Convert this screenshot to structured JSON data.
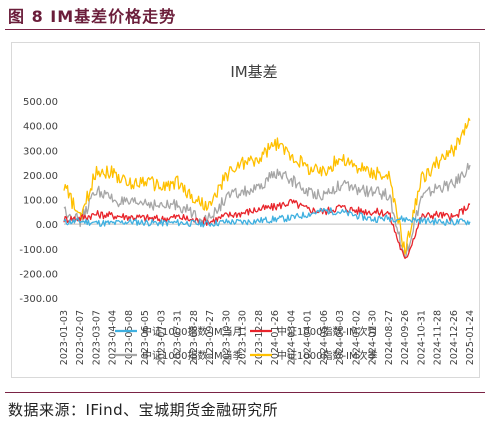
{
  "figure_title": "图 8 IM基差价格走势",
  "source": "数据来源：IFind、宝城期货金融研究所",
  "colors": {
    "im_current_month": "#3fb0e0",
    "im_next_month": "#e8242b",
    "im_current_quarter": "#a6a6a6",
    "im_next_quarter": "#ffc000",
    "accent": "#7a2345"
  },
  "chart_data": {
    "type": "line",
    "title": "IM基差",
    "xlabel": "",
    "ylabel": "",
    "ylim": [
      -300,
      500
    ],
    "y_ticks": [
      "500.00",
      "400.00",
      "300.00",
      "200.00",
      "100.00",
      "0.00",
      "-100.00",
      "-200.00",
      "-300.00"
    ],
    "x_ticks": [
      "2023-01-03",
      "2023-02-07",
      "2023-03-07",
      "2023-04-04",
      "2023-05-08",
      "2023-06-05",
      "2023-07-03",
      "2023-07-31",
      "2023-08-28",
      "2023-09-27",
      "2023-10-30",
      "2023-11-30",
      "2023-12-28",
      "2024-01-26",
      "2024-03-04",
      "2024-04-01",
      "2024-05-06",
      "2024-06-03",
      "2024-07-02",
      "2024-07-30",
      "2024-08-27",
      "2024-09-26",
      "2024-10-31",
      "2024-11-28",
      "2024-12-26",
      "2025-01-24"
    ],
    "legend_position": "bottom",
    "grid": false,
    "series": [
      {
        "name": "中证1000指数-IM当月",
        "values": [
          8,
          12,
          5,
          3,
          10,
          7,
          4,
          6,
          3,
          2,
          9,
          8,
          14,
          20,
          25,
          40,
          55,
          50,
          35,
          20,
          25,
          20,
          15,
          10,
          8,
          10
        ]
      },
      {
        "name": "中证1000指数-IM次月",
        "values": [
          20,
          25,
          40,
          35,
          30,
          25,
          20,
          30,
          15,
          10,
          35,
          45,
          60,
          70,
          90,
          60,
          50,
          70,
          55,
          50,
          45,
          -150,
          30,
          40,
          25,
          80
        ]
      },
      {
        "name": "中证1000指数-IM当季",
        "values": [
          60,
          10,
          140,
          100,
          80,
          90,
          70,
          80,
          40,
          20,
          110,
          130,
          140,
          210,
          180,
          130,
          120,
          160,
          140,
          130,
          120,
          -140,
          110,
          150,
          160,
          240
        ]
      },
      {
        "name": "中证1000指数-IM次季",
        "values": [
          160,
          20,
          220,
          210,
          160,
          180,
          150,
          170,
          100,
          70,
          200,
          250,
          260,
          330,
          280,
          230,
          210,
          270,
          230,
          210,
          190,
          -110,
          180,
          250,
          300,
          420
        ]
      }
    ]
  }
}
